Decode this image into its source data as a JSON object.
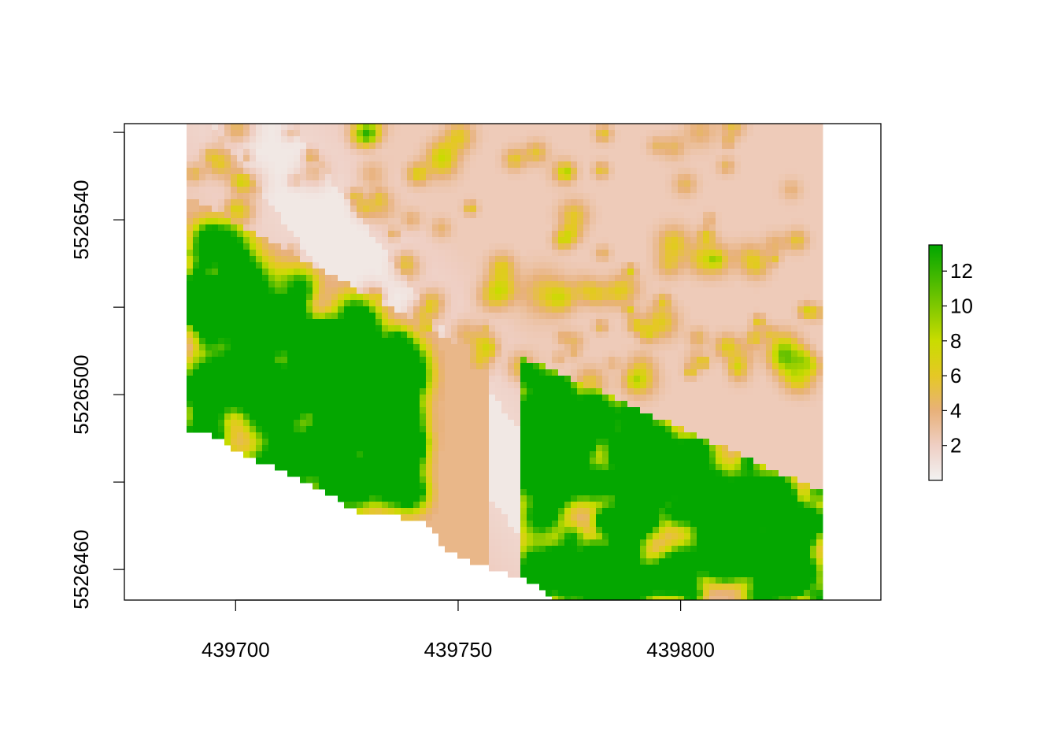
{
  "chart_data": {
    "type": "heatmap",
    "title": "",
    "xlabel": "",
    "ylabel": "",
    "xlim": [
      439675,
      439845
    ],
    "ylim": [
      5526453,
      5526562
    ],
    "raster_extent": {
      "x": [
        439689,
        439831
      ],
      "y": [
        5526453,
        5526562
      ]
    },
    "x_ticks": [
      439700,
      439750,
      439800
    ],
    "x_tick_labels": [
      "439700",
      "439750",
      "439800"
    ],
    "y_ticks": [
      5526460,
      5526480,
      5526500,
      5526520,
      5526540,
      5526560
    ],
    "y_tick_labels": [
      "5526460",
      "",
      "5526500",
      "",
      "5526540",
      ""
    ],
    "value_range": [
      0,
      13.5
    ],
    "colorbar": {
      "ticks": [
        2,
        4,
        6,
        8,
        10,
        12
      ],
      "tick_labels": [
        "2",
        "4",
        "6",
        "8",
        "10",
        "12"
      ],
      "stops": [
        {
          "value": 0,
          "color": "#f2f2f2"
        },
        {
          "value": 2,
          "color": "#efcfc4"
        },
        {
          "value": 4,
          "color": "#e8b17a"
        },
        {
          "value": 6,
          "color": "#e5c825"
        },
        {
          "value": 8,
          "color": "#c9dc00"
        },
        {
          "value": 10,
          "color": "#7fc800"
        },
        {
          "value": 13.5,
          "color": "#00a600"
        }
      ]
    },
    "grid": false,
    "legend": "right"
  }
}
